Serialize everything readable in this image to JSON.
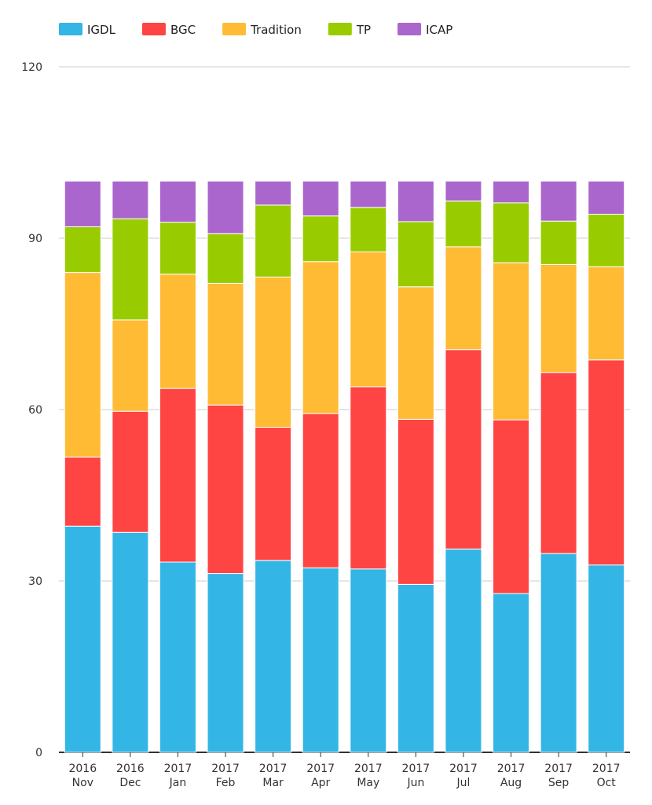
{
  "chart_data": {
    "type": "bar",
    "stacked": true,
    "categories": [
      [
        "2016",
        "Nov"
      ],
      [
        "2016",
        "Dec"
      ],
      [
        "2017",
        "Jan"
      ],
      [
        "2017",
        "Feb"
      ],
      [
        "2017",
        "Mar"
      ],
      [
        "2017",
        "Apr"
      ],
      [
        "2017",
        "May"
      ],
      [
        "2017",
        "Jun"
      ],
      [
        "2017",
        "Jul"
      ],
      [
        "2017",
        "Aug"
      ],
      [
        "2017",
        "Sep"
      ],
      [
        "2017",
        "Oct"
      ]
    ],
    "series": [
      {
        "name": "IGDL",
        "color": "#33b5e5",
        "values": [
          39.6,
          38.5,
          33.3,
          31.3,
          33.6,
          32.3,
          32.1,
          29.4,
          35.6,
          27.8,
          34.8,
          32.8
        ]
      },
      {
        "name": "BGC",
        "color": "#ff4444",
        "values": [
          12.1,
          21.2,
          30.4,
          29.5,
          23.3,
          27.0,
          31.9,
          28.9,
          34.9,
          30.4,
          31.7,
          35.9
        ]
      },
      {
        "name": "Tradition",
        "color": "#ffbb33",
        "values": [
          32.3,
          16.0,
          20.0,
          21.3,
          26.3,
          26.6,
          23.6,
          23.2,
          18.0,
          27.5,
          18.9,
          16.3
        ]
      },
      {
        "name": "TP",
        "color": "#99cc00",
        "values": [
          8.0,
          17.7,
          9.1,
          8.7,
          12.6,
          8.0,
          7.8,
          11.4,
          8.0,
          10.5,
          7.6,
          9.2
        ]
      },
      {
        "name": "ICAP",
        "color": "#aa66cc",
        "values": [
          8.0,
          6.6,
          7.2,
          9.2,
          4.2,
          6.1,
          4.6,
          7.1,
          3.5,
          3.8,
          7.0,
          5.8
        ]
      }
    ],
    "y_ticks": [
      0,
      30,
      60,
      90,
      120
    ],
    "ylim": [
      0,
      120
    ],
    "grid": true,
    "legend_position": "top-left",
    "title": "",
    "xlabel": "",
    "ylabel": ""
  }
}
